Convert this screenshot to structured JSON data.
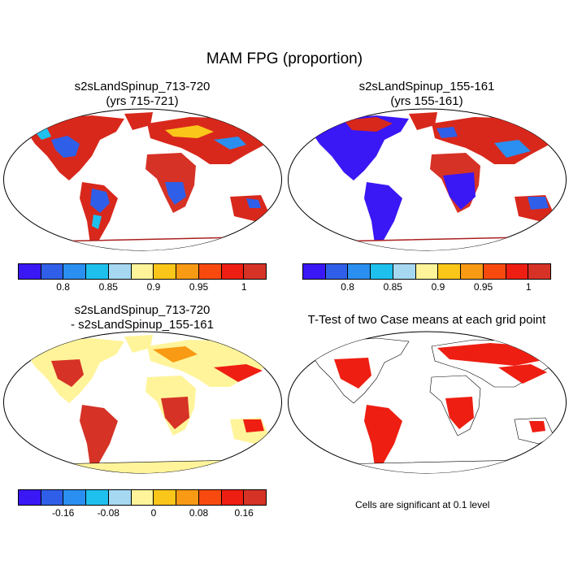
{
  "title": "MAM FPG (proportion)",
  "panels": [
    {
      "title_line1": "s2sLandSpinup_713-720",
      "title_line2": "(yrs 715-721)",
      "map_description": "world map, robinson projection, FPG proportion case 1"
    },
    {
      "title_line1": "s2sLandSpinup_155-161",
      "title_line2": "(yrs 155-161)",
      "map_description": "world map, robinson projection, FPG proportion case 2"
    },
    {
      "title_line1": "s2sLandSpinup_713-720",
      "title_line2": "- s2sLandSpinup_155-161",
      "map_description": "world map, robinson projection, difference"
    },
    {
      "title_line1": "T-Test of two Case means at each grid point",
      "title_line2": "",
      "map_description": "world map, robinson projection, significance"
    }
  ],
  "colorbars": {
    "fpg": {
      "colors": [
        "#3a17f5",
        "#2f5fe8",
        "#2a8ff0",
        "#1ec0ee",
        "#a6d8f2",
        "#fff49a",
        "#fbc61a",
        "#f89a14",
        "#f84a0f",
        "#ee1e12",
        "#d63226"
      ],
      "ticks": [
        {
          "label": "0.8",
          "edge": 1
        },
        {
          "label": "0.85",
          "edge": 3
        },
        {
          "label": "0.9",
          "edge": 5
        },
        {
          "label": "0.95",
          "edge": 7
        },
        {
          "label": "1",
          "edge": 9
        }
      ]
    },
    "diff": {
      "colors": [
        "#3a17f5",
        "#2f5fe8",
        "#2a8ff0",
        "#1ec0ee",
        "#a6d8f2",
        "#fff49a",
        "#fbc61a",
        "#f89a14",
        "#f84a0f",
        "#ee1e12",
        "#d63226"
      ],
      "ticks": [
        {
          "label": "-0.16",
          "edge": 1
        },
        {
          "label": "-0.08",
          "edge": 3
        },
        {
          "label": "0",
          "edge": 5
        },
        {
          "label": "0.08",
          "edge": 7
        },
        {
          "label": "0.16",
          "edge": 9
        }
      ]
    }
  },
  "note": "Cells are significant at 0.1 level"
}
